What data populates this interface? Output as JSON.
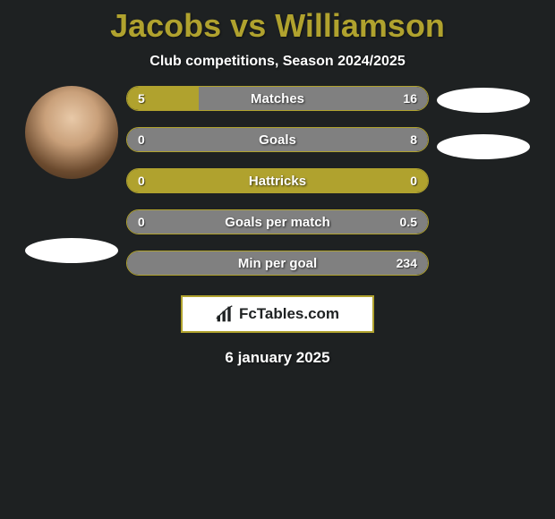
{
  "title_color": "#b0a22e",
  "player_left": "Jacobs",
  "player_right": "Williamson",
  "subtitle": "Club competitions, Season 2024/2025",
  "background_color": "#1e2122",
  "bars": [
    {
      "label": "Matches",
      "left_val": "5",
      "right_val": "16",
      "left_pct": 23.8,
      "right_pct": 76.2,
      "left_color": "#b0a22e",
      "right_color": "#808080"
    },
    {
      "label": "Goals",
      "left_val": "0",
      "right_val": "8",
      "left_pct": 0.0,
      "right_pct": 100.0,
      "left_color": "#b0a22e",
      "right_color": "#808080"
    },
    {
      "label": "Hattricks",
      "left_val": "0",
      "right_val": "0",
      "left_pct": 0.0,
      "right_pct": 0.0,
      "left_color": "#b0a22e",
      "right_color": "#808080"
    },
    {
      "label": "Goals per match",
      "left_val": "0",
      "right_val": "0.5",
      "left_pct": 0.0,
      "right_pct": 100.0,
      "left_color": "#b0a22e",
      "right_color": "#808080"
    },
    {
      "label": "Min per goal",
      "left_val": "",
      "right_val": "234",
      "left_pct": 0.0,
      "right_pct": 100.0,
      "left_color": "#b0a22e",
      "right_color": "#808080"
    }
  ],
  "bar_empty_color": "#b0a22e",
  "bar_border_color": "#b0a22e",
  "logo_text": "FcTables.com",
  "logo_border_color": "#b0a22e",
  "date": "6 january 2025",
  "avatar_left_visible": true,
  "avatar_right_visible": false,
  "side_pill_color": "#ffffff"
}
